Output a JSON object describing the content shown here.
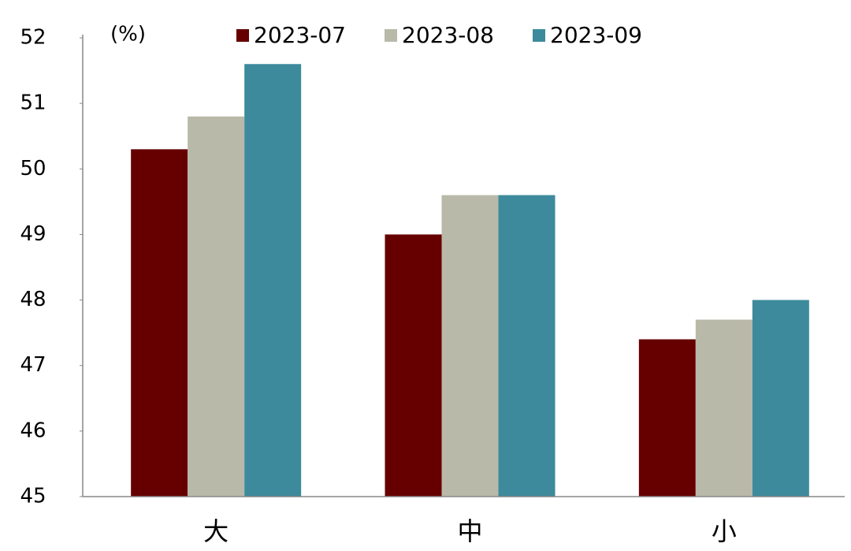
{
  "chart_data": {
    "type": "bar",
    "y_axis_label": "(%)",
    "categories": [
      "大",
      "中",
      "小"
    ],
    "series": [
      {
        "name": "2023-07",
        "color": "#660000",
        "values": [
          50.3,
          49.0,
          47.4
        ]
      },
      {
        "name": "2023-08",
        "color": "#b9b9a9",
        "values": [
          50.8,
          49.6,
          47.7
        ]
      },
      {
        "name": "2023-09",
        "color": "#3d8a9c",
        "values": [
          51.6,
          49.6,
          48.0
        ]
      }
    ],
    "ylim": [
      45,
      52
    ],
    "yticks": [
      45,
      46,
      47,
      48,
      49,
      50,
      51,
      52
    ],
    "grid": false
  }
}
